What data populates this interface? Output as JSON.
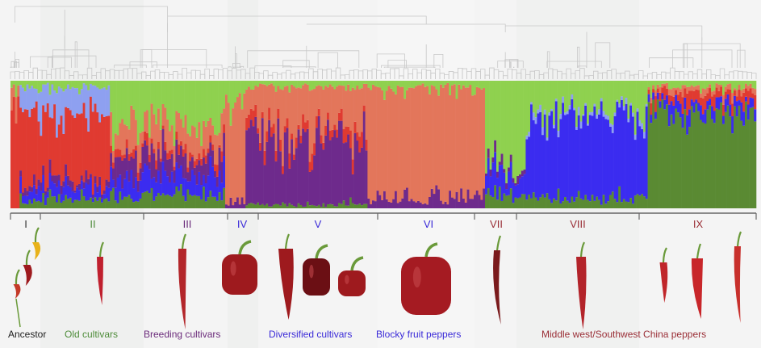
{
  "chart_data": {
    "type": "bar",
    "subtype": "stacked-admixture-with-dendrogram",
    "title": "",
    "xlabel": "",
    "ylabel": "",
    "ylim": [
      0,
      1
    ],
    "colors": {
      "red": "#e03a31",
      "salmon": "#e3765b",
      "light_green": "#8fd14f",
      "dark_green": "#5a8a33",
      "blue": "#3b2cf0",
      "light_blue": "#8ea0f0",
      "purple": "#6e2a8c"
    },
    "component_order": [
      "dark_green",
      "blue",
      "purple",
      "red",
      "salmon",
      "light_blue",
      "light_green"
    ],
    "groups": [
      {
        "id": "I",
        "label_color": "#333333",
        "start": 0,
        "end": 4,
        "profile": {
          "red": 0.85,
          "salmon": 0.1,
          "light_green": 0.05
        }
      },
      {
        "id": "II",
        "label_color": "#4e8c3a",
        "start": 4,
        "end": 44,
        "profile": {
          "red": 0.55,
          "light_blue": 0.2,
          "blue": 0.08,
          "purple": 0.05,
          "dark_green": 0.07,
          "light_green": 0.05
        }
      },
      {
        "id": "III",
        "label_color": "#6a2a7a",
        "start": 44,
        "end": 95,
        "profile": {
          "light_green": 0.35,
          "salmon": 0.2,
          "blue": 0.15,
          "purple": 0.15,
          "dark_green": 0.1,
          "red": 0.05
        }
      },
      {
        "id": "IV",
        "label_color": "#3a2ad8",
        "start": 95,
        "end": 104,
        "profile": {
          "salmon": 0.8,
          "light_green": 0.15,
          "purple": 0.05
        }
      },
      {
        "id": "V",
        "label_color": "#3a2ad8",
        "start": 104,
        "end": 158,
        "profile": {
          "purple": 0.5,
          "salmon": 0.35,
          "red": 0.07,
          "light_green": 0.05,
          "dark_green": 0.03
        }
      },
      {
        "id": "VI",
        "label_color": "#3a2ad8",
        "start": 158,
        "end": 210,
        "profile": {
          "salmon": 0.88,
          "purple": 0.07,
          "light_green": 0.05
        }
      },
      {
        "id": "VII",
        "label_color": "#9a2e36",
        "start": 210,
        "end": 228,
        "profile": {
          "light_green": 0.7,
          "blue": 0.15,
          "dark_green": 0.1,
          "purple": 0.05
        }
      },
      {
        "id": "VIII",
        "label_color": "#9a2e36",
        "start": 228,
        "end": 282,
        "profile": {
          "blue": 0.65,
          "light_green": 0.25,
          "dark_green": 0.07,
          "light_blue": 0.03
        }
      },
      {
        "id": "IX",
        "label_color": "#9a2e36",
        "start": 282,
        "end": 330,
        "profile": {
          "dark_green": 0.75,
          "blue": 0.08,
          "red": 0.08,
          "light_green": 0.05,
          "salmon": 0.04
        }
      }
    ],
    "n_samples": 330
  },
  "captions": [
    {
      "text": "Ancestor",
      "color": "#222222"
    },
    {
      "text": "Old cultivars",
      "color": "#4e8c3a"
    },
    {
      "text": "Breeding cultivars",
      "color": "#6a2a7a"
    },
    {
      "text": "Diversified cultivars",
      "color": "#3a2ad8"
    },
    {
      "text": "Blocky fruit peppers",
      "color": "#3a2ad8"
    },
    {
      "text": "Middle west/Southwest China peppers",
      "color": "#9a2e36"
    }
  ],
  "colors": {
    "dendrogram": "#c8c8c8",
    "bracket": "#666666",
    "pepper_red": "#9e1a1e",
    "pepper_dark": "#6b0f14",
    "pepper_yellow": "#e8b21a",
    "stem_green": "#6a9a3a"
  }
}
